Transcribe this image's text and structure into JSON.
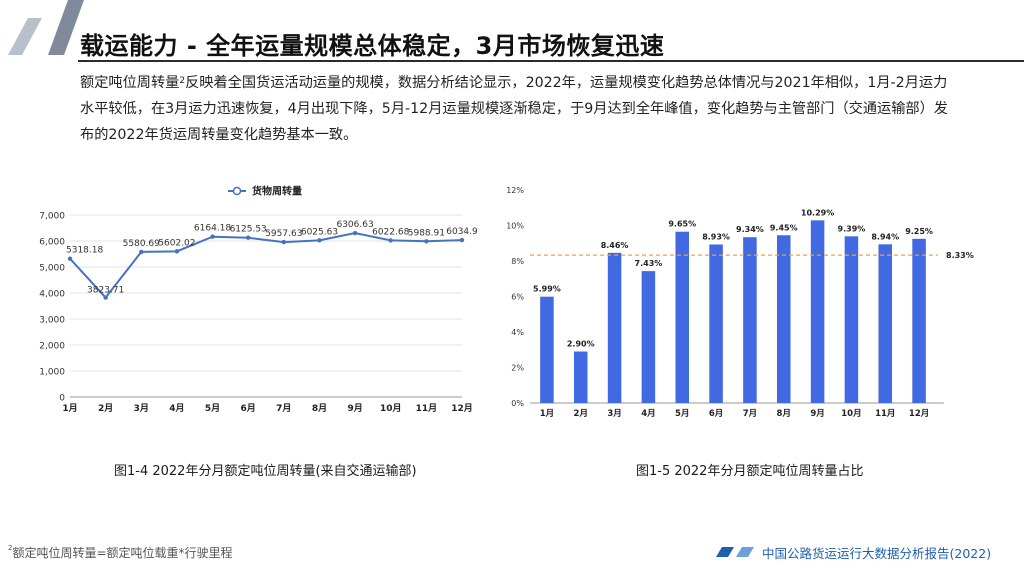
{
  "page": {
    "title": "载运能力 - 全年运量规模总体稳定，3月市场恢复迅速",
    "body_before_sup": "额定吨位周转量",
    "body_sup": "2",
    "body_after_sup": "反映着全国货运活动运量的规模，数据分析结论显示，2022年，运量规模变化趋势总体情况与2021年相似，1月-2月运力水平较低，在3月运力迅速恢复，4月出现下降，5月-12月运量规模逐渐稳定，于9月达到全年峰值，变化趋势与主管部门（交通运输部）发布的2022年货运周转量变化趋势基本一致。",
    "caption_left": "图1-4  2022年分月额定吨位周转量(来自交通运输部)",
    "caption_right": "图1-5  2022年分月额定吨位周转量占比",
    "footnote_sup": "2",
    "footnote_text": "额定吨位周转量=额定吨位载重*行驶里程",
    "report_name": "中国公路货运运行大数据分析报告(2022)",
    "colors": {
      "accent_blue": "#4169e1",
      "dark_blue": "#1f5fae",
      "reference_orange": "#f0a040",
      "deco_gray": "#8a95a5"
    }
  },
  "chart_data": [
    {
      "type": "line",
      "title": "",
      "legend": "货物周转量",
      "legend_position": "top",
      "categories": [
        "1月",
        "2月",
        "3月",
        "4月",
        "5月",
        "6月",
        "7月",
        "8月",
        "9月",
        "10月",
        "11月",
        "12月"
      ],
      "series": [
        {
          "name": "货物周转量",
          "values": [
            5318.18,
            3823.71,
            5580.69,
            5602.02,
            6164.18,
            6125.53,
            5957.63,
            6025.63,
            6306.63,
            6022.68,
            5988.91,
            6034.9
          ]
        }
      ],
      "data_labels": [
        "5318.18",
        "3823.71",
        "5580.69",
        "5602.02",
        "6164.18",
        "6125.53",
        "5957.63",
        "6025.63",
        "6306.63",
        "6022.68",
        "5988.91",
        "6034.9"
      ],
      "ylim": [
        0,
        7000
      ],
      "yticks": [
        "0",
        "1,000",
        "2,000",
        "3,000",
        "4,000",
        "5,000",
        "6,000",
        "7,000"
      ],
      "grid": true,
      "color": "#4472c4"
    },
    {
      "type": "bar",
      "title": "",
      "categories": [
        "1月",
        "2月",
        "3月",
        "4月",
        "5月",
        "6月",
        "7月",
        "8月",
        "9月",
        "10月",
        "11月",
        "12月"
      ],
      "values": [
        5.99,
        2.9,
        8.46,
        7.43,
        9.65,
        8.93,
        9.34,
        9.45,
        10.29,
        9.39,
        8.94,
        9.25
      ],
      "data_labels": [
        "5.99%",
        "2.90%",
        "8.46%",
        "7.43%",
        "9.65%",
        "8.93%",
        "9.34%",
        "9.45%",
        "10.29%",
        "9.39%",
        "8.94%",
        "9.25%"
      ],
      "ylim": [
        0,
        12
      ],
      "yticks": [
        "0%",
        "2%",
        "4%",
        "6%",
        "8%",
        "10%",
        "12%"
      ],
      "reference_line": {
        "value": 8.33,
        "label": "8.33%",
        "color": "#f0a040",
        "style": "dashed"
      },
      "grid": false,
      "color": "#4169e1"
    }
  ]
}
